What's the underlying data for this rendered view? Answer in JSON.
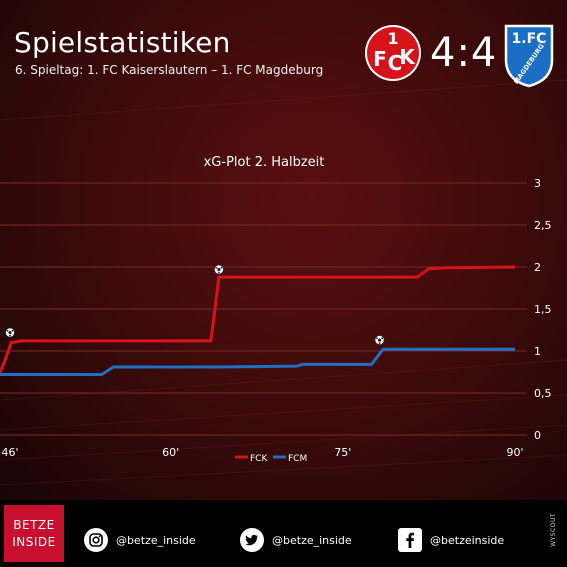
{
  "header": {
    "title": "Spielstatistiken",
    "subtitle": "6. Spieltag: 1. FC Kaiserslautern – 1. FC Magdeburg",
    "score": "4:4",
    "home_crest_text": "1FCK",
    "away_crest_text": "1.FC MAGDEBURG"
  },
  "chart_data": {
    "type": "line",
    "title": "xG-Plot 2. Halbzeit",
    "xlabel": "",
    "ylabel": "",
    "xlim": [
      45,
      90
    ],
    "ylim": [
      0,
      3
    ],
    "x_ticks": [
      46,
      60,
      75,
      90
    ],
    "x_tick_labels": [
      "46'",
      "60'",
      "75'",
      "90'"
    ],
    "y_ticks": [
      0,
      0.5,
      1,
      1.5,
      2,
      2.5,
      3
    ],
    "y_tick_labels": [
      "0",
      "0,5",
      "1",
      "1,5",
      "2",
      "2,5",
      "3"
    ],
    "grid": true,
    "legend_position": "bottom-center",
    "series": [
      {
        "name": "FCK",
        "color": "#d6131b",
        "points": [
          [
            45,
            0.7
          ],
          [
            45.6,
            0.9
          ],
          [
            46.1,
            1.1
          ],
          [
            47,
            1.12
          ],
          [
            63.5,
            1.12
          ],
          [
            64.2,
            1.88
          ],
          [
            81.5,
            1.88
          ],
          [
            82.5,
            1.98
          ],
          [
            84,
            1.99
          ],
          [
            90,
            2.0
          ]
        ],
        "goals_x": [
          46,
          64.2
        ],
        "goals_y": [
          1.22,
          1.97
        ]
      },
      {
        "name": "FCM",
        "color": "#1f6fc5",
        "points": [
          [
            45,
            0.72
          ],
          [
            54,
            0.72
          ],
          [
            55,
            0.81
          ],
          [
            64,
            0.81
          ],
          [
            71,
            0.82
          ],
          [
            71.5,
            0.84
          ],
          [
            77.5,
            0.84
          ],
          [
            78.5,
            1.02
          ],
          [
            90,
            1.02
          ]
        ],
        "goals_x": [
          78.2
        ],
        "goals_y": [
          1.13
        ]
      }
    ]
  },
  "footer": {
    "brand_line1": "BETZE",
    "brand_line2": "INSIDE",
    "instagram": "@betze_inside",
    "twitter": "@betze_inside",
    "facebook": "@betzeinside",
    "stamp": "WYSCOUT"
  },
  "colors": {
    "background": "#2a0707",
    "accent_red": "#c8102e",
    "grid": "#7a2a2a",
    "fcm_blue": "#1a6fc4"
  }
}
